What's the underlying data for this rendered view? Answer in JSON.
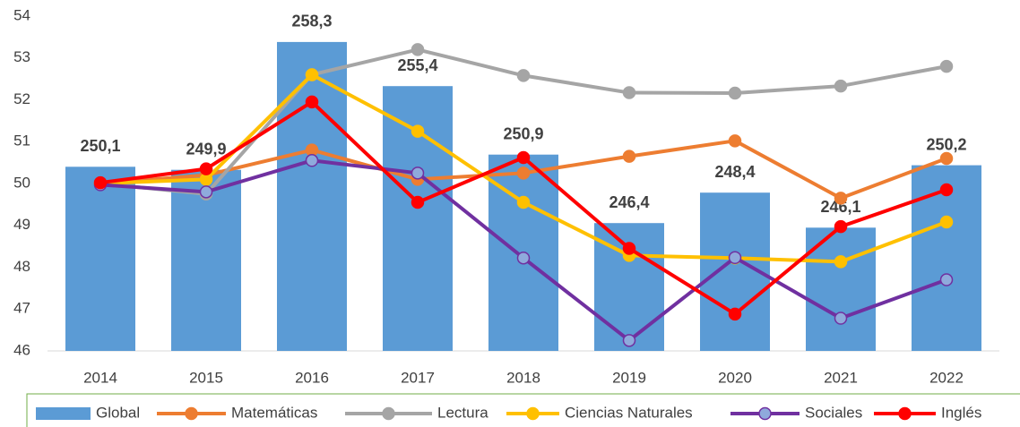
{
  "chart_data": {
    "type": "bar",
    "categories": [
      "2014",
      "2015",
      "2016",
      "2017",
      "2018",
      "2019",
      "2020",
      "2021",
      "2022"
    ],
    "series": [
      {
        "name": "Global",
        "type": "bar",
        "axis": "y2",
        "color": "#5b9bd5",
        "values": [
          250.1,
          249.9,
          258.3,
          255.4,
          250.9,
          246.4,
          248.4,
          246.1,
          250.2
        ],
        "value_labels": [
          "250,1",
          "249,9",
          "258,3",
          "255,4",
          "250,9",
          "246,4",
          "248,4",
          "246,1",
          "250,2"
        ]
      },
      {
        "name": "Matemáticas",
        "type": "line",
        "color": "#ed7d31",
        "values": [
          50.0,
          50.2,
          50.8,
          50.1,
          50.25,
          50.65,
          51.02,
          49.65,
          50.6
        ]
      },
      {
        "name": "Lectura",
        "type": "line",
        "color": "#a5a5a5",
        "values": [
          50.0,
          49.75,
          52.6,
          53.2,
          52.58,
          52.17,
          52.16,
          52.33,
          52.8
        ]
      },
      {
        "name": "Ciencias Naturales",
        "type": "line",
        "color": "#ffc000",
        "values": [
          50.0,
          50.1,
          52.6,
          51.25,
          49.55,
          48.28,
          48.22,
          48.13,
          49.08
        ]
      },
      {
        "name": "Sociales",
        "type": "line",
        "color": "#7030a0",
        "marker_fill": "#8faadc",
        "values": [
          49.97,
          49.8,
          50.55,
          50.25,
          48.22,
          46.25,
          48.23,
          46.78,
          47.7
        ]
      },
      {
        "name": "Inglés",
        "type": "line",
        "color": "#ff0000",
        "values": [
          50.02,
          50.35,
          51.95,
          49.55,
          50.62,
          48.45,
          46.88,
          48.97,
          49.85
        ]
      }
    ],
    "ylim": [
      46,
      54
    ],
    "yticks": [
      46,
      47,
      48,
      49,
      50,
      51,
      52,
      53,
      54
    ],
    "y2lim": [
      238,
      260
    ],
    "legend": "bottom"
  }
}
